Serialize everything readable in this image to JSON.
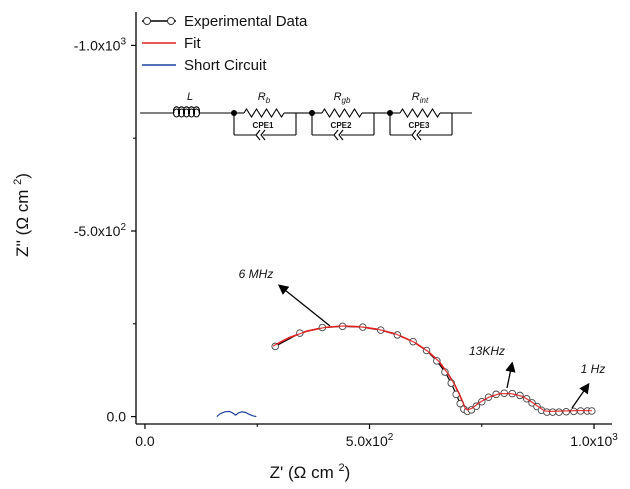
{
  "chart_data": {
    "type": "scatter",
    "xlabel": "Z' (Ω cm²)",
    "ylabel": "Z'' (Ω cm²)",
    "xlim": [
      -20,
      1040
    ],
    "ylim": [
      20,
      -1090
    ],
    "y_inverted": true,
    "x_ticks": [
      {
        "value": 0,
        "label": "0.0"
      },
      {
        "value": 500,
        "label": "5.0x10",
        "exp": "2"
      },
      {
        "value": 1000,
        "label": "1.0x10",
        "exp": "3"
      }
    ],
    "y_ticks": [
      {
        "value": 0,
        "label": "0.0"
      },
      {
        "value": -500,
        "label": "-5.0x10",
        "exp": "2"
      },
      {
        "value": -1000,
        "label": "-1.0x10",
        "exp": "3"
      }
    ],
    "legend": [
      {
        "name": "Experimental Data",
        "color": "#000000",
        "marker": "circle"
      },
      {
        "name": "Fit",
        "color": "#e02020",
        "marker": "none"
      },
      {
        "name": "Short Circuit",
        "color": "#2040a0",
        "marker": "none"
      }
    ],
    "series": [
      {
        "name": "Experimental Data",
        "color": "#000000",
        "points": [
          [
            290,
            -189
          ],
          [
            345,
            -225
          ],
          [
            395,
            -240
          ],
          [
            440,
            -243
          ],
          [
            485,
            -241
          ],
          [
            525,
            -233
          ],
          [
            562,
            -220
          ],
          [
            597,
            -202
          ],
          [
            627,
            -178
          ],
          [
            650,
            -150
          ],
          [
            668,
            -120
          ],
          [
            682,
            -90
          ],
          [
            693,
            -60
          ],
          [
            702,
            -35
          ],
          [
            710,
            -20
          ],
          [
            718,
            -14
          ],
          [
            727,
            -18
          ],
          [
            738,
            -28
          ],
          [
            750,
            -40
          ],
          [
            765,
            -52
          ],
          [
            782,
            -60
          ],
          [
            800,
            -63
          ],
          [
            818,
            -62
          ],
          [
            835,
            -57
          ],
          [
            850,
            -48
          ],
          [
            862,
            -37
          ],
          [
            873,
            -27
          ],
          [
            883,
            -17
          ],
          [
            895,
            -12
          ],
          [
            908,
            -12
          ],
          [
            922,
            -12
          ],
          [
            938,
            -13
          ],
          [
            955,
            -14
          ],
          [
            970,
            -15
          ],
          [
            985,
            -15
          ],
          [
            995,
            -15
          ]
        ]
      },
      {
        "name": "Fit",
        "color": "#e02020",
        "points": [
          [
            285,
            -190
          ],
          [
            320,
            -212
          ],
          [
            360,
            -230
          ],
          [
            400,
            -240
          ],
          [
            440,
            -244
          ],
          [
            480,
            -242
          ],
          [
            520,
            -235
          ],
          [
            560,
            -222
          ],
          [
            600,
            -200
          ],
          [
            630,
            -176
          ],
          [
            655,
            -148
          ],
          [
            675,
            -115
          ],
          [
            690,
            -85
          ],
          [
            700,
            -60
          ],
          [
            708,
            -38
          ],
          [
            713,
            -22
          ],
          [
            718,
            -18
          ],
          [
            728,
            -22
          ],
          [
            745,
            -38
          ],
          [
            765,
            -52
          ],
          [
            790,
            -62
          ],
          [
            815,
            -62
          ],
          [
            840,
            -55
          ],
          [
            860,
            -40
          ],
          [
            878,
            -25
          ],
          [
            890,
            -15
          ],
          [
            905,
            -14
          ],
          [
            930,
            -15
          ],
          [
            960,
            -16
          ],
          [
            995,
            -16
          ]
        ]
      },
      {
        "name": "Short Circuit",
        "color": "#2040a0",
        "points": [
          [
            160,
            0
          ],
          [
            168,
            -8
          ],
          [
            178,
            -13
          ],
          [
            188,
            -14
          ],
          [
            196,
            -9
          ],
          [
            202,
            -4
          ],
          [
            208,
            -10
          ],
          [
            216,
            -13
          ],
          [
            224,
            -11
          ],
          [
            232,
            -6
          ],
          [
            240,
            -2
          ],
          [
            248,
            0
          ]
        ]
      }
    ],
    "annotations": [
      {
        "text": "6 MHz"
      },
      {
        "text": "13KHz"
      },
      {
        "text": "1 Hz"
      }
    ],
    "circuit": {
      "elements": [
        {
          "type": "inductor",
          "label": "L"
        },
        {
          "type": "resistor",
          "label": "R",
          "sub": "b",
          "cpe": "CPE1"
        },
        {
          "type": "resistor",
          "label": "R",
          "sub": "gb",
          "cpe": "CPE2"
        },
        {
          "type": "resistor",
          "label": "R",
          "sub": "int",
          "cpe": "CPE3"
        }
      ]
    }
  }
}
